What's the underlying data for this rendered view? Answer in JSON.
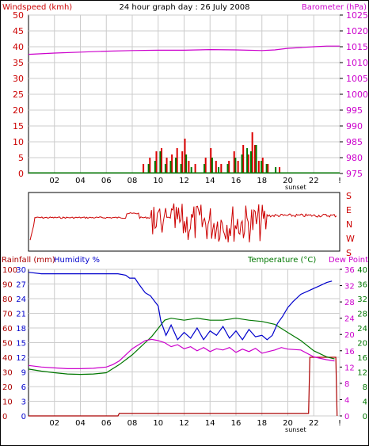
{
  "header": {
    "title": "24 hour graph day : 26 July 2008",
    "left_label": "Windspeed (kmh)",
    "right_label": "Barometer (hPa)"
  },
  "colors": {
    "wind_axis": "#cc0000",
    "baro_axis": "#cc00cc",
    "baro_line": "#cc00cc",
    "wind_gust": "#dd0000",
    "wind_avg": "#007700",
    "wind_base": "#0000aa",
    "direction": "#cc0000",
    "rain": "#aa0000",
    "humidity": "#0000cc",
    "temperature": "#007700",
    "dewpoint": "#cc00cc",
    "grid": "#cccccc"
  },
  "panel_bottom": {
    "rain_label": "Rainfall (mm)",
    "humidity_label": "Humidity %",
    "temp_label": "Temperature (°C)",
    "dew_label": "Dew Point"
  },
  "direction_panel": {
    "labels": [
      "S",
      "E",
      "N",
      "W",
      "S"
    ]
  },
  "chart_data": [
    {
      "type": "line",
      "x_ticks": [
        "02",
        "04",
        "06",
        "08",
        "10",
        "12",
        "14",
        "16",
        "18",
        "20",
        "22",
        "!"
      ],
      "x_extra_label": "sunset",
      "x_range": [
        0,
        24
      ],
      "grid": true,
      "left_axis": {
        "range": [
          0,
          50
        ],
        "ticks": [
          0,
          5,
          10,
          15,
          20,
          25,
          30,
          35,
          40,
          45,
          50
        ]
      },
      "right_axis": {
        "range": [
          975,
          1025
        ],
        "ticks": [
          975,
          980,
          985,
          990,
          995,
          1000,
          1005,
          1010,
          1015,
          1020,
          1025
        ]
      },
      "barometer": {
        "x": [
          0,
          2,
          4,
          6,
          8,
          10,
          12,
          14,
          16,
          18,
          19,
          20,
          22,
          23,
          24
        ],
        "y": [
          1012.6,
          1013.0,
          1013.3,
          1013.6,
          1013.8,
          1013.9,
          1013.9,
          1014.1,
          1014.0,
          1013.8,
          1014.0,
          1014.5,
          1015.0,
          1015.2,
          1015.2
        ]
      },
      "wind_gust": {
        "x": [
          8.8,
          9.3,
          9.8,
          10.2,
          10.6,
          11.0,
          11.4,
          11.8,
          12.0,
          12.3,
          12.8,
          13.6,
          14.0,
          14.4,
          14.8,
          15.4,
          15.8,
          16.1,
          16.5,
          16.9,
          17.2,
          17.4,
          17.7,
          18.0,
          18.4,
          19.3
        ],
        "y": [
          3,
          5,
          7,
          8,
          5,
          6,
          8,
          7,
          11,
          4,
          3,
          5,
          8,
          4,
          3,
          4,
          7,
          4,
          9,
          6,
          13,
          9,
          4,
          5,
          3,
          2
        ]
      },
      "wind_avg": {
        "x": [
          9.2,
          9.7,
          10.1,
          10.5,
          10.9,
          11.3,
          11.7,
          12.1,
          12.5,
          13.5,
          14.1,
          14.6,
          15.3,
          15.9,
          16.4,
          16.8,
          17.1,
          17.5,
          17.9,
          18.3,
          19.0
        ],
        "y": [
          3,
          4,
          7,
          3,
          4,
          5,
          3,
          6,
          2,
          3,
          5,
          2,
          3,
          5,
          6,
          8,
          7,
          9,
          4,
          3,
          2
        ]
      }
    },
    {
      "type": "line",
      "x_range": [
        0,
        24
      ],
      "x_ticks": [
        "02",
        "04",
        "06",
        "08",
        "10",
        "12",
        "14",
        "16",
        "18",
        "20",
        "22",
        "!"
      ],
      "x_extra_label": "sunset",
      "grid": true,
      "left_axis_rain": {
        "range": [
          0,
          30
        ],
        "ticks": [
          0,
          3,
          6,
          9,
          12,
          15,
          18,
          21,
          24,
          27,
          30
        ]
      },
      "left_axis_humidity": {
        "range": [
          0,
          100
        ],
        "ticks": [
          0,
          10,
          20,
          30,
          40,
          50,
          60,
          70,
          80,
          90,
          100
        ]
      },
      "right_axis_dew": {
        "range": [
          0,
          40
        ],
        "ticks": [
          0,
          4,
          8,
          12,
          16,
          20,
          24,
          28,
          32,
          36,
          40
        ]
      },
      "right_axis_temp": {
        "range": [
          0,
          36
        ],
        "ticks": [
          0,
          4,
          8,
          12,
          16,
          20,
          24,
          28,
          32,
          36
        ]
      },
      "humidity": {
        "x": [
          0,
          1,
          2,
          4,
          6,
          6.9,
          7.5,
          7.8,
          8.2,
          8.5,
          9.0,
          9.4,
          10.0,
          10.2,
          10.6,
          11.0,
          11.5,
          12,
          12.5,
          13,
          13.5,
          14,
          14.5,
          15,
          15.5,
          16,
          16.5,
          17,
          17.5,
          18,
          18.4,
          18.8,
          19.2,
          19.6,
          20.0,
          20.4,
          21.0,
          21.5,
          22.0,
          22.5,
          23.0,
          23.4
        ],
        "y": [
          98,
          97,
          97,
          97,
          97,
          97,
          96,
          94,
          94,
          90,
          84,
          82,
          75,
          65,
          55,
          62,
          52,
          57,
          53,
          60,
          52,
          58,
          55,
          61,
          53,
          58,
          52,
          59,
          54,
          55,
          52,
          55,
          63,
          68,
          74,
          78,
          83,
          85,
          87,
          89,
          91,
          92
        ]
      },
      "temperature": {
        "x": [
          0,
          1,
          2,
          3,
          4,
          5,
          6,
          6.5,
          7,
          7.5,
          8,
          8.5,
          9,
          9.5,
          10,
          10.5,
          11,
          12,
          13,
          14,
          15,
          16,
          17,
          18,
          19,
          20,
          21,
          22,
          23,
          23.6
        ],
        "y": [
          11.5,
          11.0,
          10.6,
          10.3,
          10.2,
          10.3,
          10.6,
          11.6,
          12.6,
          13.8,
          15.0,
          16.5,
          18.0,
          19.5,
          21.5,
          23.5,
          24.0,
          23.5,
          24.0,
          23.5,
          23.5,
          24.0,
          23.5,
          23.2,
          22.5,
          20.5,
          18.5,
          16.0,
          14.5,
          14.0
        ]
      },
      "dewpoint": {
        "x": [
          0,
          1,
          2,
          3,
          4,
          5,
          6,
          6.5,
          7,
          7.5,
          8,
          8.5,
          9,
          9.5,
          10,
          10.5,
          11,
          11.5,
          12,
          12.5,
          13,
          13.5,
          14,
          14.5,
          15,
          15.5,
          16,
          16.5,
          17,
          17.5,
          18,
          18.5,
          19,
          19.5,
          20,
          21,
          22,
          23,
          23.6
        ],
        "y": [
          12.4,
          12.0,
          11.8,
          11.6,
          11.6,
          11.7,
          12.0,
          12.6,
          13.5,
          15.0,
          16.5,
          17.5,
          18.5,
          18.8,
          18.5,
          18.0,
          17.0,
          17.5,
          16.5,
          17.0,
          16.0,
          16.8,
          15.8,
          16.5,
          16.2,
          16.8,
          15.6,
          16.4,
          15.8,
          16.6,
          15.4,
          15.8,
          16.2,
          16.8,
          16.4,
          16.2,
          14.5,
          13.8,
          13.5
        ]
      },
      "rainfall": {
        "x": [
          0,
          6.9,
          7.0,
          21.6,
          21.7,
          23.7,
          23.8
        ],
        "y": [
          0,
          0,
          0.5,
          0.5,
          12,
          12,
          0
        ]
      }
    }
  ]
}
